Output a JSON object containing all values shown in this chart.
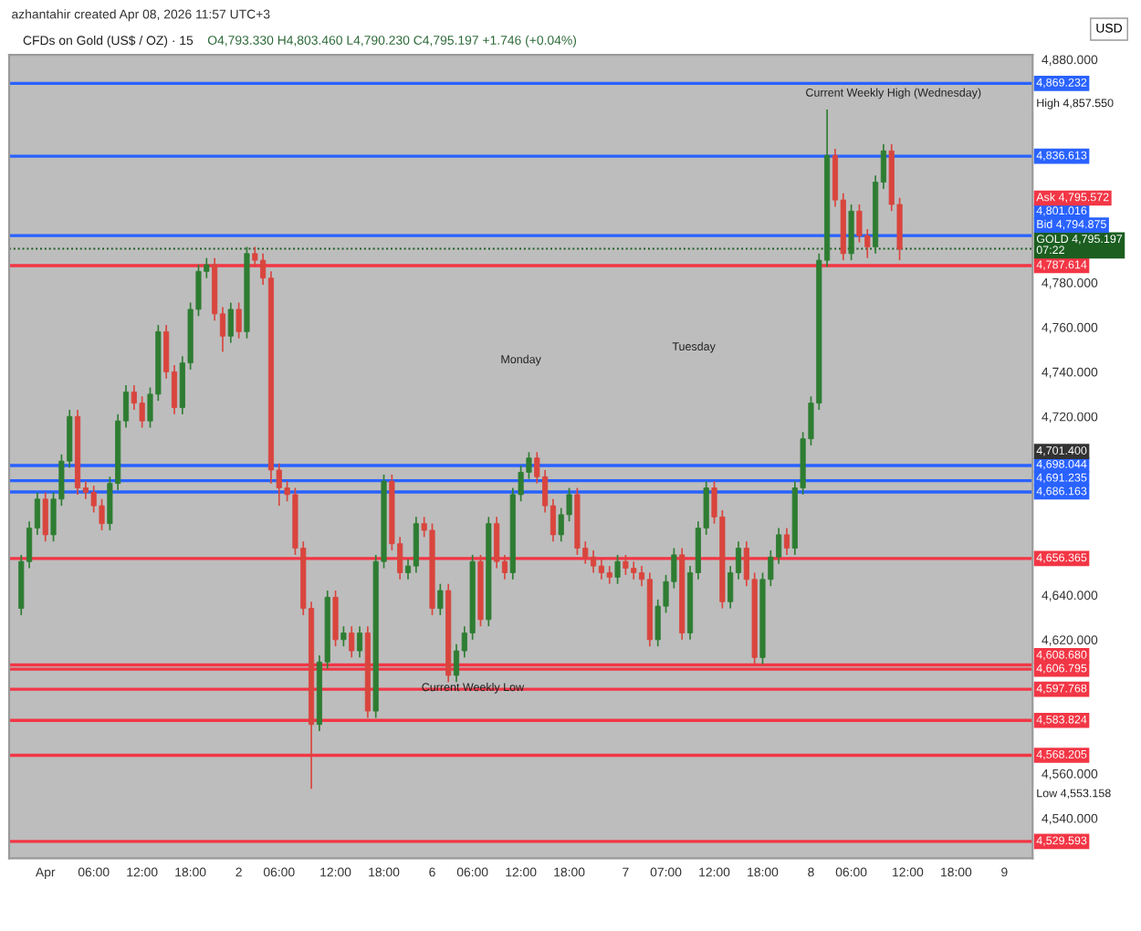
{
  "chart_data": {
    "type": "candlestick",
    "title": "CFDs on Gold (US$ / OZ) · 15",
    "subtitle": "O4,793.330 H4,803.460 L4,790.230 C4,795.197 +1.746 (+0.04%)",
    "ylabel": "USD",
    "annotations": [
      "azhantahir created Apr 08, 2026 11:57 UTC+3",
      "Current Weekly High (Wednesday)",
      "Monday",
      "Tuesday",
      "Current Weekly Low",
      "High 4,857.550",
      "4,701.400",
      "Low 4,553.158",
      "Ask 4,795.572",
      "Bid 4,794.875"
    ],
    "categories": [
      null,
      null,
      null,
      null,
      "Apr",
      null,
      null,
      null,
      null,
      null,
      "06:00",
      null,
      null,
      null,
      null,
      null,
      "12:00",
      null,
      null,
      null,
      null,
      null,
      "18:00",
      null,
      null,
      null,
      null,
      null,
      "2",
      null,
      null,
      null,
      null,
      "06:00",
      null,
      null,
      null,
      null,
      null,
      null,
      "12:00",
      null,
      null,
      null,
      null,
      null,
      "18:00",
      null,
      null,
      null,
      null,
      null,
      "6",
      null,
      null,
      null,
      null,
      "06:00",
      null,
      null,
      null,
      null,
      null,
      "12:00",
      null,
      null,
      null,
      null,
      null,
      "18:00",
      null,
      null,
      null,
      null,
      null,
      null,
      "7",
      null,
      null,
      null,
      null,
      "07:00",
      null,
      null,
      null,
      null,
      null,
      "12:00",
      null,
      null,
      null,
      null,
      null,
      "18:00",
      null,
      null,
      null,
      null,
      null,
      "8",
      null,
      null,
      null,
      null,
      "06:00",
      null,
      null,
      null,
      null,
      null,
      null,
      "12:00",
      null,
      null,
      null,
      null,
      null,
      "18:00",
      null,
      null,
      null,
      null,
      null,
      "9",
      null,
      null,
      null
    ],
    "ohlc": [
      null,
      [
        4634,
        4658,
        4631,
        4655
      ],
      [
        4655,
        4673,
        4652,
        4670
      ],
      [
        4670,
        4686,
        4667,
        4683
      ],
      [
        4683,
        4686,
        4664,
        4667
      ],
      [
        4667,
        4686,
        4664,
        4683
      ],
      [
        4683,
        4703,
        4680,
        4700
      ],
      [
        4700,
        4723,
        4697,
        4720
      ],
      [
        4720,
        4723,
        4685,
        4688
      ],
      [
        4688,
        4691,
        4683,
        4686
      ],
      [
        4686,
        4689,
        4677,
        4680
      ],
      [
        4680,
        4683,
        4669,
        4672
      ],
      [
        4672,
        4693,
        4669,
        4690
      ],
      [
        4690,
        4721,
        4687,
        4718
      ],
      [
        4718,
        4734,
        4715,
        4731
      ],
      [
        4731,
        4734,
        4723,
        4726
      ],
      [
        4726,
        4729,
        4715,
        4718
      ],
      [
        4718,
        4733,
        4715,
        4730
      ],
      [
        4730,
        4761,
        4727,
        4758
      ],
      [
        4758,
        4761,
        4737,
        4740
      ],
      [
        4740,
        4743,
        4721,
        4724
      ],
      [
        4724,
        4747,
        4721,
        4744
      ],
      [
        4744,
        4771,
        4741,
        4768
      ],
      [
        4768,
        4788,
        4765,
        4785
      ],
      [
        4785,
        4791,
        4782,
        4788
      ],
      [
        4788,
        4791,
        4763,
        4766
      ],
      [
        4766,
        4769,
        4749,
        4756
      ],
      [
        4756,
        4771,
        4753,
        4768
      ],
      [
        4768,
        4771,
        4755,
        4758
      ],
      [
        4758,
        4796,
        4755,
        4793
      ],
      [
        4793,
        4796,
        4787,
        4790
      ],
      [
        4790,
        4793,
        4779,
        4782
      ],
      [
        4782,
        4785,
        4690,
        4696
      ],
      [
        4696,
        4699,
        4680,
        4688
      ],
      [
        4688,
        4691,
        4682,
        4685
      ],
      [
        4685,
        4688,
        4658,
        4661
      ],
      [
        4661,
        4664,
        4631,
        4634
      ],
      [
        4634,
        4637,
        4553.158,
        4582
      ],
      [
        4582,
        4613,
        4579,
        4610
      ],
      [
        4610,
        4642,
        4607,
        4639
      ],
      [
        4639,
        4642,
        4617,
        4620
      ],
      [
        4620,
        4626,
        4617,
        4623
      ],
      [
        4623,
        4626,
        4612,
        4615
      ],
      [
        4615,
        4626,
        4612,
        4623
      ],
      [
        4623,
        4626,
        4585,
        4588
      ],
      [
        4588,
        4658,
        4585,
        4655
      ],
      [
        4655,
        4694,
        4652,
        4691
      ],
      [
        4691,
        4694,
        4660,
        4663
      ],
      [
        4663,
        4666,
        4647,
        4650
      ],
      [
        4650,
        4656,
        4647,
        4653
      ],
      [
        4653,
        4675,
        4650,
        4672
      ],
      [
        4672,
        4675,
        4666,
        4669
      ],
      [
        4669,
        4672,
        4631,
        4634
      ],
      [
        4634,
        4645,
        4631,
        4642
      ],
      [
        4642,
        4645,
        4601,
        4604
      ],
      [
        4604,
        4618,
        4601,
        4615
      ],
      [
        4615,
        4626,
        4612,
        4623
      ],
      [
        4623,
        4658,
        4620,
        4655
      ],
      [
        4655,
        4658,
        4626,
        4629
      ],
      [
        4629,
        4675,
        4626,
        4672
      ],
      [
        4672,
        4675,
        4652,
        4655
      ],
      [
        4655,
        4658,
        4647,
        4650
      ],
      [
        4650,
        4688,
        4647,
        4685
      ],
      [
        4685,
        4698,
        4682,
        4695
      ],
      [
        4695,
        4704,
        4692,
        4701.4
      ],
      [
        4701.4,
        4704,
        4690,
        4693
      ],
      [
        4693,
        4696,
        4677,
        4680
      ],
      [
        4680,
        4683,
        4664,
        4667
      ],
      [
        4667,
        4679,
        4664,
        4676
      ],
      [
        4676,
        4688,
        4673,
        4685
      ],
      [
        4685,
        4688,
        4658,
        4661
      ],
      [
        4661,
        4664,
        4654,
        4657
      ],
      [
        4657,
        4660,
        4650,
        4653
      ],
      [
        4653,
        4656,
        4647,
        4650
      ],
      [
        4650,
        4653,
        4645,
        4648
      ],
      [
        4648,
        4658,
        4645,
        4655
      ],
      [
        4655,
        4658,
        4649,
        4652
      ],
      [
        4652,
        4655,
        4647,
        4650
      ],
      [
        4650,
        4653,
        4644,
        4647
      ],
      [
        4647,
        4650,
        4617,
        4620
      ],
      [
        4620,
        4638,
        4617,
        4635
      ],
      [
        4635,
        4649,
        4632,
        4646
      ],
      [
        4646,
        4661,
        4643,
        4658
      ],
      [
        4658,
        4661,
        4620,
        4623
      ],
      [
        4623,
        4653,
        4620,
        4650
      ],
      [
        4650,
        4673,
        4647,
        4670
      ],
      [
        4670,
        4691,
        4667,
        4688
      ],
      [
        4688,
        4691,
        4672,
        4675
      ],
      [
        4675,
        4678,
        4634,
        4637
      ],
      [
        4637,
        4653,
        4634,
        4650
      ],
      [
        4650,
        4664,
        4647,
        4661
      ],
      [
        4661,
        4664,
        4644,
        4647
      ],
      [
        4647,
        4650,
        4609,
        4612
      ],
      [
        4612,
        4650,
        4609,
        4647
      ],
      [
        4647,
        4660,
        4644,
        4657
      ],
      [
        4657,
        4670,
        4654,
        4667
      ],
      [
        4667,
        4670,
        4658,
        4661
      ],
      [
        4661,
        4691,
        4658,
        4688
      ],
      [
        4688,
        4713,
        4685,
        4710
      ],
      [
        4710,
        4729,
        4707,
        4726
      ],
      [
        4726,
        4793,
        4723,
        4790
      ],
      [
        4790,
        4857.55,
        4787,
        4837
      ],
      [
        4837,
        4840,
        4814,
        4817
      ],
      [
        4817,
        4820,
        4790,
        4793
      ],
      [
        4793,
        4815,
        4790,
        4812
      ],
      [
        4812,
        4815,
        4798,
        4801
      ],
      [
        4801,
        4804,
        4791,
        4796
      ],
      [
        4796,
        4828,
        4793,
        4825
      ],
      [
        4825,
        4842,
        4822,
        4839
      ],
      [
        4839,
        4842,
        4812,
        4815
      ],
      [
        4815,
        4818,
        4790,
        4795
      ],
      null,
      null,
      null,
      null,
      null,
      null,
      null,
      null,
      null,
      null,
      null,
      null,
      null,
      null,
      null,
      null
    ],
    "colors": [
      null,
      "#2e7d32",
      "#2e7d32",
      "#2e7d32",
      "#d9453d",
      "#2e7d32",
      "#2e7d32",
      "#2e7d32",
      "#d9453d",
      "#d9453d",
      "#d9453d",
      "#d9453d",
      "#2e7d32",
      "#2e7d32",
      "#2e7d32",
      "#d9453d",
      "#d9453d",
      "#2e7d32",
      "#2e7d32",
      "#d9453d",
      "#d9453d",
      "#2e7d32",
      "#2e7d32",
      "#2e7d32",
      "#2e7d32",
      "#d9453d",
      "#d9453d",
      "#2e7d32",
      "#d9453d",
      "#2e7d32",
      "#d9453d",
      "#d9453d",
      "#d9453d",
      "#d9453d",
      "#d9453d",
      "#d9453d",
      "#d9453d",
      "#d9453d",
      "#2e7d32",
      "#2e7d32",
      "#d9453d",
      "#2e7d32",
      "#d9453d",
      "#2e7d32",
      "#d9453d",
      "#2e7d32",
      "#2e7d32",
      "#d9453d",
      "#d9453d",
      "#2e7d32",
      "#2e7d32",
      "#d9453d",
      "#d9453d",
      "#2e7d32",
      "#d9453d",
      "#2e7d32",
      "#2e7d32",
      "#2e7d32",
      "#d9453d",
      "#2e7d32",
      "#d9453d",
      "#d9453d",
      "#2e7d32",
      "#2e7d32",
      "#2e7d32",
      "#d9453d",
      "#d9453d",
      "#d9453d",
      "#2e7d32",
      "#2e7d32",
      "#d9453d",
      "#d9453d",
      "#d9453d",
      "#d9453d",
      "#d9453d",
      "#2e7d32",
      "#d9453d",
      "#d9453d",
      "#d9453d",
      "#d9453d",
      "#2e7d32",
      "#2e7d32",
      "#2e7d32",
      "#d9453d",
      "#2e7d32",
      "#2e7d32",
      "#2e7d32",
      "#d9453d",
      "#d9453d",
      "#2e7d32",
      "#2e7d32",
      "#d9453d",
      "#d9453d",
      "#2e7d32",
      "#2e7d32",
      "#2e7d32",
      "#d9453d",
      "#2e7d32",
      "#2e7d32",
      "#2e7d32",
      "#2e7d32",
      "#2e7d32",
      "#d9453d",
      "#d9453d",
      "#2e7d32",
      "#d9453d",
      "#d9453d",
      "#2e7d32",
      "#2e7d32",
      "#d9453d",
      "#d9453d",
      null,
      null,
      null,
      null,
      null,
      null,
      null,
      null,
      null,
      null,
      null,
      null,
      null,
      null,
      null,
      null
    ],
    "ylim": [
      4522,
      4882
    ],
    "yticks": [
      {
        "value": 4880,
        "label": "4,880.000"
      },
      {
        "value": 4780,
        "label": "4,780.000"
      },
      {
        "value": 4760,
        "label": "4,760.000"
      },
      {
        "value": 4740,
        "label": "4,740.000"
      },
      {
        "value": 4720,
        "label": "4,720.000"
      },
      {
        "value": 4640,
        "label": "4,640.000"
      },
      {
        "value": 4620,
        "label": "4,620.000"
      },
      {
        "value": 4560,
        "label": "4,560.000"
      },
      {
        "value": 4540,
        "label": "4,540.000"
      }
    ],
    "ref_lines": [
      {
        "axis": "y",
        "value": 4869.232,
        "label": "4,869.232",
        "color": "#2962ff"
      },
      {
        "axis": "y",
        "value": 4836.613,
        "label": "4,836.613",
        "color": "#2962ff"
      },
      {
        "axis": "y",
        "value": 4801.016,
        "label": "4,801.016",
        "color": "#2962ff"
      },
      {
        "axis": "y",
        "value": 4795.197,
        "label": "GOLD 4,795.197\n07:22",
        "color": "#1b5e20",
        "line_style": "dotted"
      },
      {
        "axis": "y",
        "value": 4787.614,
        "label": "4,787.614",
        "color": "#f23645"
      },
      {
        "axis": "y",
        "value": 4698.044,
        "label": "4,698.044",
        "color": "#2962ff"
      },
      {
        "axis": "y",
        "value": 4691.235,
        "label": "4,691.235",
        "color": "#2962ff"
      },
      {
        "axis": "y",
        "value": 4686.163,
        "label": "4,686.163",
        "color": "#2962ff"
      },
      {
        "axis": "y",
        "value": 4656.365,
        "label": "4,656.365",
        "color": "#f23645"
      },
      {
        "axis": "y",
        "value": 4608.68,
        "label": "4,608.680",
        "color": "#f23645"
      },
      {
        "axis": "y",
        "value": 4606.795,
        "label": "4,606.795",
        "color": "#f23645"
      },
      {
        "axis": "y",
        "value": 4597.768,
        "label": "4,597.768",
        "color": "#f23645"
      },
      {
        "axis": "y",
        "value": 4583.824,
        "label": "4,583.824",
        "color": "#f23645"
      },
      {
        "axis": "y",
        "value": 4568.205,
        "label": "4,568.205",
        "color": "#f23645"
      },
      {
        "axis": "y",
        "value": 4529.593,
        "label": "4,529.593",
        "color": "#f23645"
      }
    ]
  }
}
